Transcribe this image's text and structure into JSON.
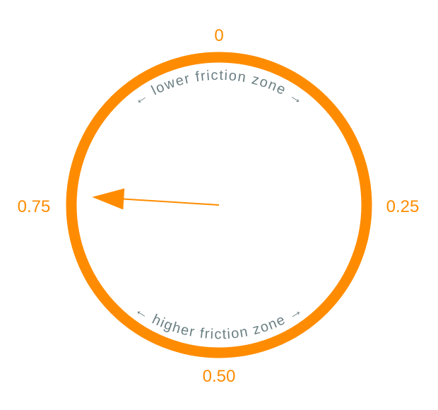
{
  "colors": {
    "accent": "#ff8c00",
    "zone_text": "#6b7f83",
    "background": "#ffffff"
  },
  "dial": {
    "tick_labels": {
      "top": "0",
      "right": "0.25",
      "bottom": "0.50",
      "left": "0.75"
    },
    "zones": {
      "upper": "← lower friction zone →",
      "lower": "← higher friction zone →"
    },
    "pointer_value": 0.76
  }
}
